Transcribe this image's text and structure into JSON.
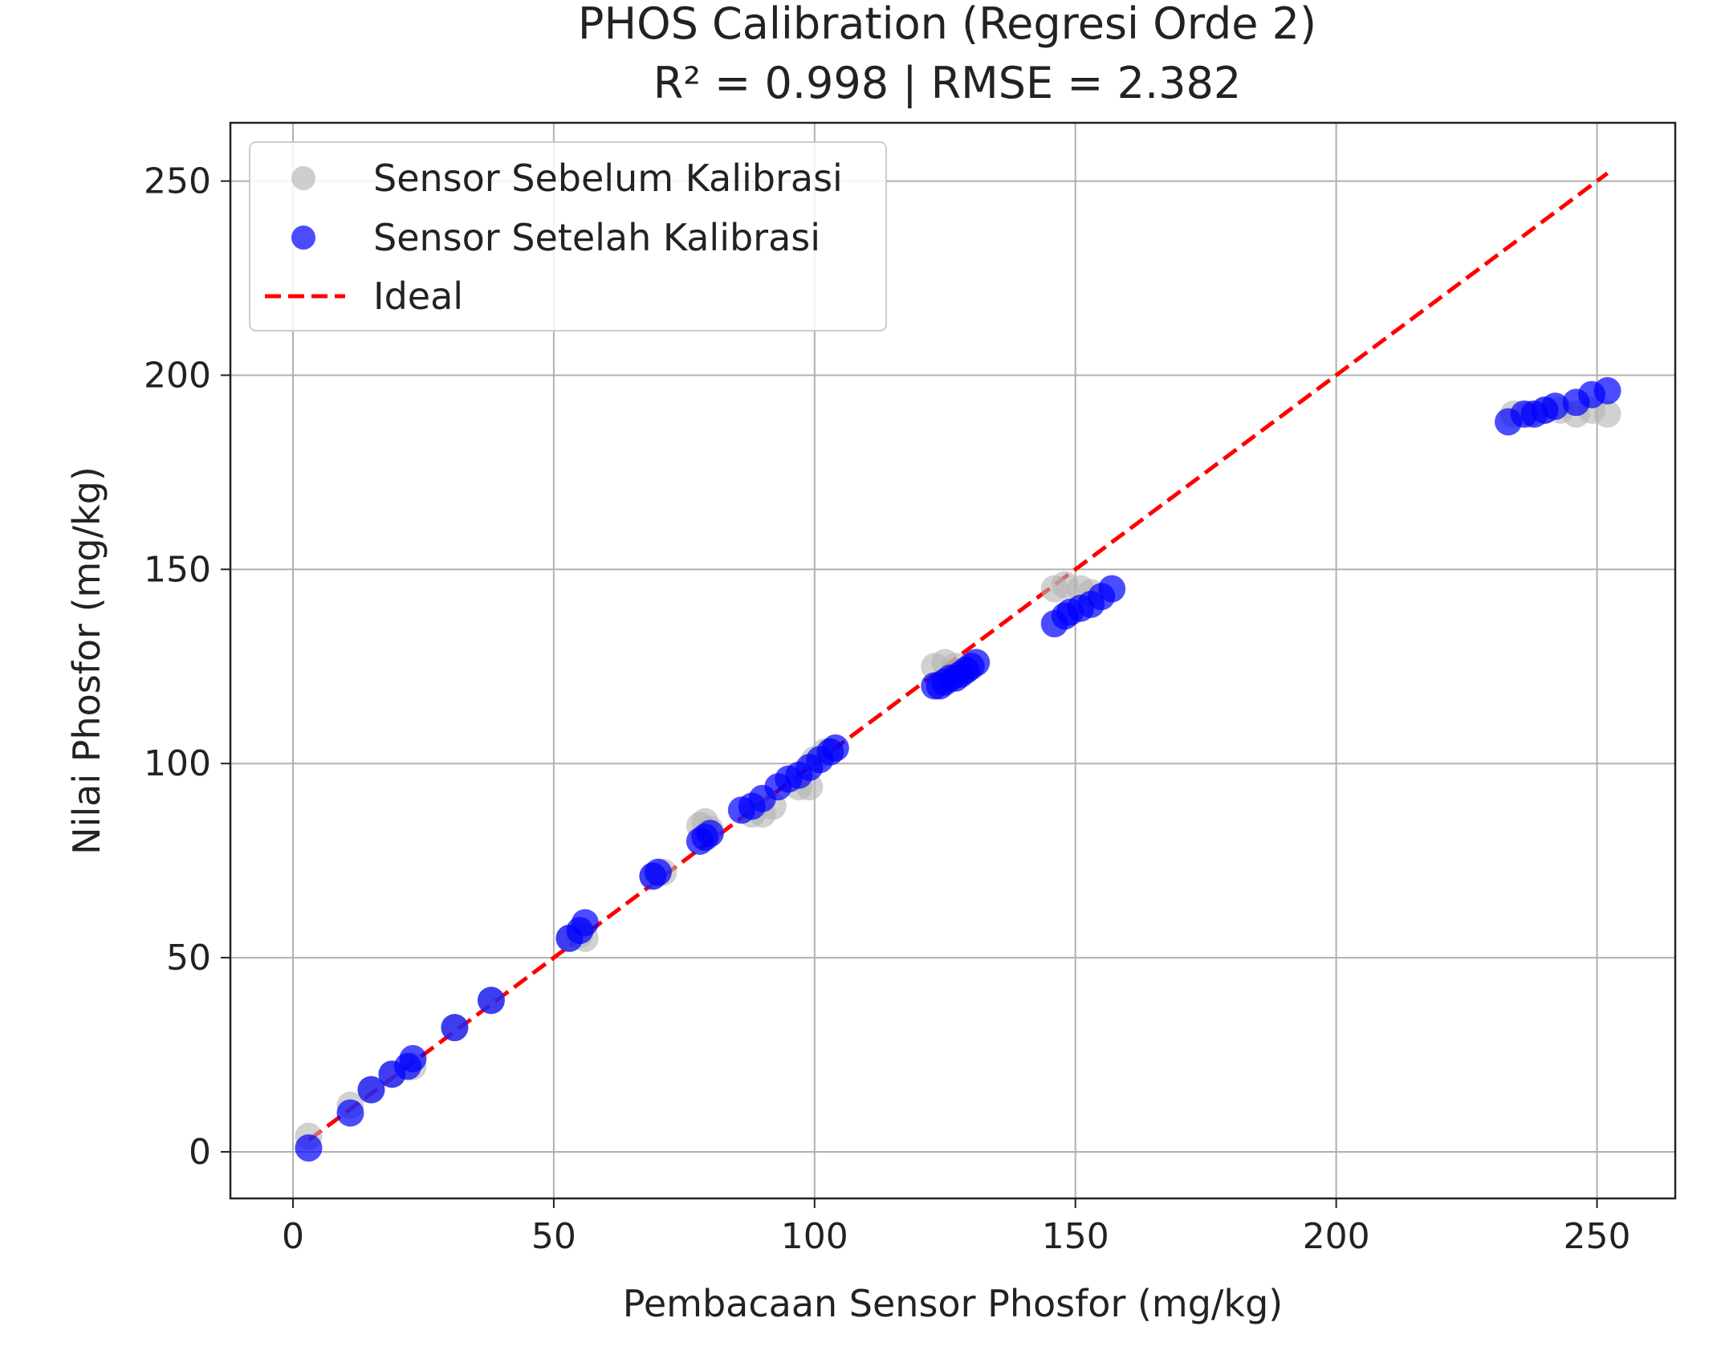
{
  "chart_data": {
    "type": "scatter",
    "title": "PHOS Calibration (Regresi Orde 2)",
    "subtitle": "R² = 0.998 | RMSE = 2.382",
    "xlabel": "Pembacaan Sensor Phosfor (mg/kg)",
    "ylabel": "Nilai Phosfor (mg/kg)",
    "xlim": [
      -12,
      265
    ],
    "ylim": [
      -12,
      265
    ],
    "xticks": [
      0,
      50,
      100,
      150,
      200,
      250
    ],
    "yticks": [
      0,
      50,
      100,
      150,
      200,
      250
    ],
    "grid": true,
    "legend_position": "top-left",
    "series": [
      {
        "name": "Sensor Sebelum Kalibrasi",
        "color": "#b3b3b3",
        "kind": "scatter",
        "points": [
          [
            3,
            4
          ],
          [
            11,
            12
          ],
          [
            15,
            16
          ],
          [
            19,
            20
          ],
          [
            23,
            22
          ],
          [
            31,
            32
          ],
          [
            38,
            39
          ],
          [
            53,
            55
          ],
          [
            55,
            56
          ],
          [
            56,
            55
          ],
          [
            69,
            71
          ],
          [
            71,
            72
          ],
          [
            78,
            84
          ],
          [
            79,
            85
          ],
          [
            80,
            83
          ],
          [
            88,
            87
          ],
          [
            90,
            87
          ],
          [
            92,
            89
          ],
          [
            97,
            94
          ],
          [
            99,
            94
          ],
          [
            100,
            101
          ],
          [
            102,
            103
          ],
          [
            123,
            125
          ],
          [
            125,
            126
          ],
          [
            127,
            125
          ],
          [
            129,
            124
          ],
          [
            146,
            145
          ],
          [
            148,
            146
          ],
          [
            151,
            145
          ],
          [
            153,
            144
          ],
          [
            234,
            190
          ],
          [
            237,
            190
          ],
          [
            240,
            191
          ],
          [
            243,
            191
          ],
          [
            246,
            190
          ],
          [
            249,
            191
          ],
          [
            252,
            190
          ]
        ]
      },
      {
        "name": "Sensor Setelah Kalibrasi",
        "color": "#0000ff",
        "kind": "scatter",
        "points": [
          [
            3,
            1
          ],
          [
            11,
            10
          ],
          [
            15,
            16
          ],
          [
            19,
            20
          ],
          [
            22,
            22
          ],
          [
            23,
            24
          ],
          [
            31,
            32
          ],
          [
            38,
            39
          ],
          [
            53,
            55
          ],
          [
            55,
            57
          ],
          [
            56,
            59
          ],
          [
            69,
            71
          ],
          [
            70,
            72
          ],
          [
            78,
            80
          ],
          [
            79,
            81
          ],
          [
            80,
            82
          ],
          [
            86,
            88
          ],
          [
            88,
            89
          ],
          [
            90,
            91
          ],
          [
            93,
            94
          ],
          [
            95,
            96
          ],
          [
            97,
            97
          ],
          [
            99,
            99
          ],
          [
            101,
            101
          ],
          [
            103,
            103
          ],
          [
            104,
            104
          ],
          [
            123,
            120
          ],
          [
            124,
            120
          ],
          [
            125,
            121
          ],
          [
            126,
            122
          ],
          [
            127,
            122
          ],
          [
            128,
            123
          ],
          [
            129,
            124
          ],
          [
            130,
            125
          ],
          [
            131,
            126
          ],
          [
            146,
            136
          ],
          [
            148,
            138
          ],
          [
            149,
            139
          ],
          [
            151,
            140
          ],
          [
            153,
            141
          ],
          [
            155,
            143
          ],
          [
            157,
            145
          ],
          [
            233,
            188
          ],
          [
            236,
            190
          ],
          [
            238,
            190
          ],
          [
            240,
            191
          ],
          [
            242,
            192
          ],
          [
            246,
            193
          ],
          [
            249,
            195
          ],
          [
            252,
            196
          ]
        ]
      },
      {
        "name": "Ideal",
        "color": "#ff0000",
        "kind": "dashed-line",
        "x": [
          3,
          252
        ],
        "y": [
          3,
          252
        ]
      }
    ]
  }
}
